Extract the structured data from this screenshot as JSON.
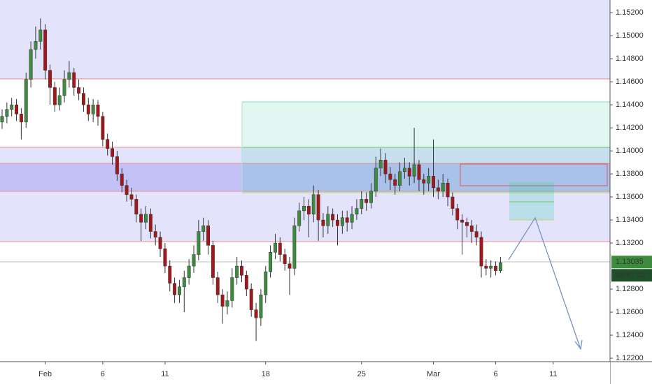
{
  "chart_data": {
    "type": "candlestick",
    "categories": [
      null,
      null,
      null,
      null,
      null,
      null,
      null,
      null,
      null,
      "Feb",
      null,
      null,
      null,
      null,
      null,
      null,
      null,
      null,
      null,
      null,
      null,
      "6",
      null,
      null,
      null,
      null,
      null,
      null,
      null,
      null,
      null,
      null,
      null,
      null,
      "11",
      null,
      null,
      null,
      null,
      null,
      null,
      null,
      null,
      null,
      null,
      null,
      null,
      null,
      null,
      null,
      null,
      null,
      null,
      null,
      null,
      "18",
      null,
      null,
      null,
      null,
      null,
      null,
      null,
      null,
      null,
      null,
      null,
      null,
      null,
      null,
      null,
      null,
      null,
      null,
      null,
      "25",
      null,
      null,
      null,
      null,
      null,
      null,
      null,
      null,
      null,
      null,
      null,
      null,
      null,
      null,
      "Mar",
      null,
      null,
      null,
      null,
      null,
      null,
      null,
      null,
      null,
      null,
      null,
      null,
      "6",
      null,
      null,
      null,
      null,
      null,
      null,
      null,
      null,
      null,
      null,
      null,
      "11",
      null,
      null,
      null,
      null,
      null,
      null,
      null,
      null,
      null,
      null,
      null
    ],
    "open": [
      1.1425,
      1.143,
      1.1436,
      1.144,
      1.1432,
      1.1425,
      1.1462,
      1.1488,
      1.1495,
      1.1505,
      1.147,
      1.1455,
      1.144,
      1.1448,
      1.1462,
      1.1468,
      1.1455,
      1.145,
      1.144,
      1.1432,
      1.144,
      1.143,
      1.141,
      1.1402,
      1.1395,
      1.138,
      1.137,
      1.1362,
      1.1358,
      1.1345,
      1.1338,
      1.1345,
      1.133,
      1.1325,
      1.1315,
      1.13,
      1.1285,
      1.1275,
      1.1282,
      1.129,
      1.13,
      1.131,
      1.133,
      1.1335,
      1.1318,
      1.129,
      1.1275,
      1.1265,
      1.127,
      1.129,
      1.13,
      1.1292,
      1.128,
      1.1262,
      1.1255,
      1.1275,
      1.1295,
      1.1312,
      1.132,
      1.131,
      1.1302,
      1.1298,
      1.1335,
      1.1348,
      1.1352,
      1.1345,
      1.1362,
      1.134,
      1.1335,
      1.1345,
      1.134,
      1.1335,
      1.1342,
      1.1338,
      1.1345,
      1.135,
      1.1358,
      1.1355,
      1.1365,
      1.1385,
      1.1392,
      1.138,
      1.1375,
      1.137,
      1.1382,
      1.1385,
      1.1378,
      1.1388,
      1.1375,
      1.1372,
      1.1378,
      1.1368,
      1.1365,
      1.1372,
      1.136,
      1.135,
      1.134,
      1.1338,
      1.1335,
      1.133,
      1.1325,
      1.13,
      1.1298,
      1.13,
      1.1296,
      null,
      null,
      null,
      null,
      null,
      null,
      null,
      null,
      null,
      null,
      null,
      null,
      null,
      null,
      null,
      null,
      null,
      null,
      null,
      null,
      null,
      null
    ],
    "high": [
      1.1436,
      1.1442,
      1.1446,
      1.1445,
      1.1437,
      1.1468,
      1.1495,
      1.1508,
      1.1515,
      1.151,
      1.1475,
      1.146,
      1.1455,
      1.147,
      1.1478,
      1.1472,
      1.1462,
      1.1455,
      1.1446,
      1.1445,
      1.1444,
      1.1434,
      1.1415,
      1.1408,
      1.14,
      1.1385,
      1.1375,
      1.1368,
      1.1362,
      1.135,
      1.1352,
      1.135,
      1.1336,
      1.133,
      1.132,
      1.1305,
      1.129,
      1.1288,
      1.1296,
      1.1306,
      1.1318,
      1.134,
      1.1342,
      1.134,
      1.1322,
      1.1295,
      1.128,
      1.1278,
      1.1298,
      1.1308,
      1.1305,
      1.1296,
      1.1285,
      1.1268,
      1.128,
      1.13,
      1.1318,
      1.1328,
      1.1325,
      1.1315,
      1.1308,
      1.1342,
      1.1355,
      1.136,
      1.1358,
      1.137,
      1.1366,
      1.1346,
      1.1352,
      1.135,
      1.1345,
      1.1348,
      1.1348,
      1.1352,
      1.1358,
      1.1365,
      1.1364,
      1.1372,
      1.1395,
      1.1402,
      1.1398,
      1.1386,
      1.138,
      1.139,
      1.1394,
      1.139,
      1.142,
      1.1392,
      1.138,
      1.1385,
      1.141,
      1.1375,
      1.138,
      1.1376,
      1.1364,
      1.1354,
      1.1345,
      1.1342,
      1.134,
      1.1336,
      1.133,
      1.1306,
      1.1305,
      1.1304,
      1.1308,
      null,
      null,
      null,
      null,
      null,
      null,
      null,
      null,
      null,
      null,
      null,
      null,
      null,
      null,
      null,
      null,
      null,
      null,
      null,
      null,
      null,
      null
    ],
    "low": [
      1.1419,
      1.1424,
      1.143,
      1.1426,
      1.141,
      1.142,
      1.1455,
      1.148,
      1.1488,
      1.1462,
      1.144,
      1.1434,
      1.1435,
      1.1442,
      1.1455,
      1.1448,
      1.1444,
      1.1434,
      1.1426,
      1.1425,
      1.1422,
      1.1404,
      1.1396,
      1.1388,
      1.1374,
      1.1364,
      1.1356,
      1.1352,
      1.1338,
      1.1322,
      1.1332,
      1.1324,
      1.1318,
      1.1308,
      1.1294,
      1.1278,
      1.1268,
      1.1268,
      1.126,
      1.1284,
      1.1294,
      1.1305,
      1.1322,
      1.131,
      1.1284,
      1.1268,
      1.125,
      1.1258,
      1.1264,
      1.1284,
      1.1286,
      1.1274,
      1.1256,
      1.1235,
      1.1248,
      1.1268,
      1.129,
      1.1306,
      1.1304,
      1.1296,
      1.1275,
      1.1292,
      1.133,
      1.134,
      1.1325,
      1.1338,
      1.1322,
      1.1325,
      1.1328,
      1.1334,
      1.1318,
      1.1328,
      1.133,
      1.1332,
      1.134,
      1.1345,
      1.1348,
      1.135,
      1.136,
      1.1378,
      1.1372,
      1.1366,
      1.1362,
      1.1365,
      1.1376,
      1.137,
      1.1372,
      1.1365,
      1.1362,
      1.1365,
      1.136,
      1.1358,
      1.136,
      1.1352,
      1.1344,
      1.1332,
      1.131,
      1.1325,
      1.132,
      1.1318,
      1.129,
      1.1292,
      1.129,
      1.1292,
      1.1294,
      null,
      null,
      null,
      null,
      null,
      null,
      null,
      null,
      null,
      null,
      null,
      null,
      null,
      null,
      null,
      null,
      null,
      null,
      null,
      null,
      null,
      null
    ],
    "close": [
      1.143,
      1.1436,
      1.144,
      1.1432,
      1.1425,
      1.1462,
      1.1488,
      1.1495,
      1.1505,
      1.147,
      1.1455,
      1.144,
      1.1448,
      1.1462,
      1.1468,
      1.1455,
      1.145,
      1.144,
      1.1432,
      1.144,
      1.143,
      1.141,
      1.1402,
      1.1395,
      1.138,
      1.137,
      1.1362,
      1.1358,
      1.1345,
      1.1338,
      1.1345,
      1.133,
      1.1325,
      1.1315,
      1.13,
      1.1285,
      1.1275,
      1.1282,
      1.129,
      1.13,
      1.131,
      1.133,
      1.1335,
      1.1318,
      1.129,
      1.1275,
      1.1265,
      1.127,
      1.129,
      1.13,
      1.1292,
      1.128,
      1.1262,
      1.1255,
      1.1275,
      1.1295,
      1.1312,
      1.132,
      1.131,
      1.1302,
      1.1298,
      1.1335,
      1.1348,
      1.1352,
      1.1345,
      1.1362,
      1.134,
      1.1335,
      1.1345,
      1.134,
      1.1335,
      1.1342,
      1.1338,
      1.1345,
      1.135,
      1.1358,
      1.1355,
      1.1365,
      1.1385,
      1.1392,
      1.138,
      1.1375,
      1.137,
      1.1382,
      1.1385,
      1.1378,
      1.1388,
      1.1375,
      1.1372,
      1.1378,
      1.1368,
      1.1365,
      1.1372,
      1.136,
      1.135,
      1.134,
      1.1338,
      1.1335,
      1.133,
      1.1325,
      1.13,
      1.1298,
      1.13,
      1.1296,
      1.1303,
      null,
      null,
      null,
      null,
      null,
      null,
      null,
      null,
      null,
      null,
      null,
      null,
      null,
      null,
      null,
      null,
      null,
      null,
      null,
      null,
      null,
      null
    ],
    "up_color": "#3d8b3d",
    "down_color": "#a3161a",
    "ylim": [
      1.1217,
      1.1531
    ],
    "yticks": [
      {
        "value": 1.152,
        "label": "1.15200"
      },
      {
        "value": 1.15,
        "label": "1.15000"
      },
      {
        "value": 1.148,
        "label": "1.14800"
      },
      {
        "value": 1.146,
        "label": "1.14600"
      },
      {
        "value": 1.144,
        "label": "1.14400"
      },
      {
        "value": 1.142,
        "label": "1.14200"
      },
      {
        "value": 1.14,
        "label": "1.14000"
      },
      {
        "value": 1.138,
        "label": "1.13800"
      },
      {
        "value": 1.136,
        "label": "1.13600"
      },
      {
        "value": 1.134,
        "label": "1.13400"
      },
      {
        "value": 1.132,
        "label": "1.13200"
      },
      {
        "value": 1.128,
        "label": "1.12800"
      },
      {
        "value": 1.126,
        "label": "1.12600"
      },
      {
        "value": 1.124,
        "label": "1.12400"
      },
      {
        "value": 1.122,
        "label": "1.12200"
      }
    ],
    "last_price": 1.13035,
    "countdown": "03:47:12"
  }
}
